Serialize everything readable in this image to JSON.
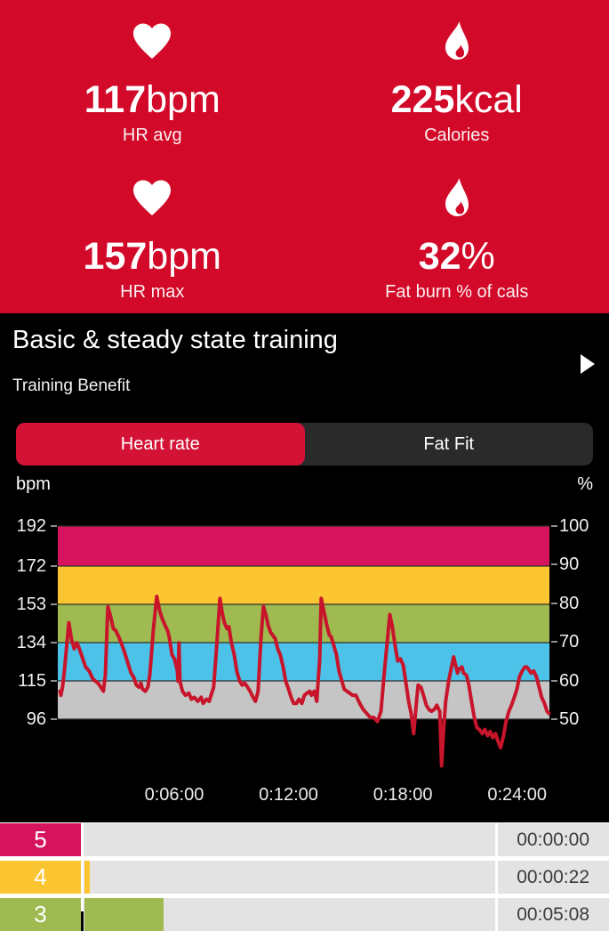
{
  "colors": {
    "header_bg": "#d20928",
    "panel_bg": "#000000",
    "tab_bar_bg": "#2b2a2b",
    "tab_selected_bg": "#d41235",
    "table_bg": "#ffffff",
    "row_bg": "#e3e3e3",
    "row_time_text": "#3b3b3b"
  },
  "header": {
    "stats": [
      {
        "icon": "heart",
        "value": "117",
        "unit": "bpm",
        "label": "HR avg"
      },
      {
        "icon": "flame",
        "value": "225",
        "unit": "kcal",
        "label": "Calories"
      },
      {
        "icon": "heart",
        "value": "157",
        "unit": "bpm",
        "label": "HR max"
      },
      {
        "icon": "flame",
        "value": "32",
        "unit": "%",
        "label": "Fat burn % of cals"
      }
    ]
  },
  "session": {
    "title": "Basic & steady state training",
    "subtitle": "Training Benefit"
  },
  "tabs": [
    {
      "label": "Heart rate",
      "selected": true
    },
    {
      "label": "Fat Fit",
      "selected": false
    }
  ],
  "chart_data": {
    "type": "line",
    "y_left_label": "bpm",
    "y_right_label": "%",
    "ylim": [
      96,
      192
    ],
    "y_left_ticks": [
      192,
      172,
      153,
      134,
      115,
      96
    ],
    "y_right_ticks": [
      100,
      90,
      80,
      70,
      60,
      50
    ],
    "x_ticks": [
      {
        "label": "0:06:00",
        "seconds": 360
      },
      {
        "label": "0:12:00",
        "seconds": 720
      },
      {
        "label": "0:18:00",
        "seconds": 1080
      },
      {
        "label": "0:24:00",
        "seconds": 1440
      }
    ],
    "zones": [
      {
        "zone": "5",
        "from": 172,
        "to": 192,
        "color": "#d6145e"
      },
      {
        "zone": "4",
        "from": 153,
        "to": 172,
        "color": "#fbc531"
      },
      {
        "zone": "3",
        "from": 134,
        "to": 153,
        "color": "#9eba51"
      },
      {
        "zone": "2",
        "from": 115,
        "to": 134,
        "color": "#4cc2e8"
      },
      {
        "zone": "1",
        "from": 96,
        "to": 115,
        "color": "#c4c5c4"
      }
    ],
    "line_color": "#c8152b",
    "series": [
      {
        "name": "heart_rate_bpm",
        "points": [
          [
            0,
            110
          ],
          [
            3,
            108
          ],
          [
            8,
            112
          ],
          [
            14,
            120
          ],
          [
            28,
            144
          ],
          [
            36,
            136
          ],
          [
            45,
            131
          ],
          [
            53,
            134
          ],
          [
            59,
            132
          ],
          [
            70,
            127
          ],
          [
            81,
            122
          ],
          [
            92,
            120
          ],
          [
            104,
            116
          ],
          [
            120,
            114
          ],
          [
            129,
            112
          ],
          [
            137,
            110
          ],
          [
            143,
            118
          ],
          [
            151,
            152
          ],
          [
            160,
            147
          ],
          [
            168,
            141
          ],
          [
            176,
            140
          ],
          [
            185,
            137
          ],
          [
            193,
            134
          ],
          [
            204,
            129
          ],
          [
            216,
            123
          ],
          [
            224,
            119
          ],
          [
            232,
            117
          ],
          [
            241,
            113
          ],
          [
            249,
            112
          ],
          [
            255,
            114
          ],
          [
            260,
            111
          ],
          [
            269,
            110
          ],
          [
            277,
            112
          ],
          [
            283,
            118
          ],
          [
            294,
            140
          ],
          [
            305,
            157
          ],
          [
            314,
            150
          ],
          [
            322,
            146
          ],
          [
            330,
            143
          ],
          [
            339,
            140
          ],
          [
            344,
            137
          ],
          [
            353,
            128
          ],
          [
            361,
            126
          ],
          [
            370,
            120
          ],
          [
            372,
            115
          ],
          [
            375,
            134
          ],
          [
            378,
            115
          ],
          [
            381,
            113
          ],
          [
            386,
            110
          ],
          [
            395,
            108
          ],
          [
            406,
            109
          ],
          [
            414,
            106
          ],
          [
            423,
            107
          ],
          [
            434,
            105
          ],
          [
            445,
            107
          ],
          [
            451,
            104
          ],
          [
            462,
            106
          ],
          [
            470,
            105
          ],
          [
            484,
            112
          ],
          [
            493,
            131
          ],
          [
            504,
            156
          ],
          [
            512,
            148
          ],
          [
            518,
            144
          ],
          [
            526,
            141
          ],
          [
            532,
            142
          ],
          [
            540,
            134
          ],
          [
            549,
            128
          ],
          [
            557,
            120
          ],
          [
            566,
            115
          ],
          [
            574,
            113
          ],
          [
            582,
            114
          ],
          [
            591,
            112
          ],
          [
            599,
            110
          ],
          [
            608,
            107
          ],
          [
            616,
            105
          ],
          [
            624,
            110
          ],
          [
            633,
            136
          ],
          [
            641,
            152
          ],
          [
            650,
            147
          ],
          [
            655,
            143
          ],
          [
            664,
            139
          ],
          [
            669,
            138
          ],
          [
            678,
            136
          ],
          [
            686,
            131
          ],
          [
            694,
            128
          ],
          [
            703,
            122
          ],
          [
            711,
            115
          ],
          [
            720,
            111
          ],
          [
            728,
            107
          ],
          [
            736,
            104
          ],
          [
            745,
            104
          ],
          [
            753,
            106
          ],
          [
            762,
            104
          ],
          [
            770,
            108
          ],
          [
            778,
            109
          ],
          [
            787,
            110
          ],
          [
            792,
            108
          ],
          [
            801,
            110
          ],
          [
            809,
            105
          ],
          [
            818,
            126
          ],
          [
            823,
            156
          ],
          [
            832,
            149
          ],
          [
            840,
            143
          ],
          [
            848,
            138
          ],
          [
            854,
            137
          ],
          [
            862,
            133
          ],
          [
            871,
            128
          ],
          [
            879,
            120
          ],
          [
            888,
            115
          ],
          [
            895,
            111
          ],
          [
            904,
            110
          ],
          [
            913,
            109
          ],
          [
            921,
            108
          ],
          [
            932,
            108
          ],
          [
            944,
            104
          ],
          [
            955,
            101
          ],
          [
            966,
            99
          ],
          [
            977,
            97
          ],
          [
            988,
            97
          ],
          [
            1000,
            95
          ],
          [
            1011,
            100
          ],
          [
            1022,
            120
          ],
          [
            1039,
            148
          ],
          [
            1047,
            142
          ],
          [
            1056,
            132
          ],
          [
            1064,
            125
          ],
          [
            1072,
            126
          ],
          [
            1081,
            123
          ],
          [
            1089,
            115
          ],
          [
            1098,
            105
          ],
          [
            1106,
            99
          ],
          [
            1114,
            89
          ],
          [
            1123,
            105
          ],
          [
            1128,
            113
          ],
          [
            1137,
            112
          ],
          [
            1145,
            108
          ],
          [
            1154,
            103
          ],
          [
            1162,
            101
          ],
          [
            1170,
            100
          ],
          [
            1179,
            101
          ],
          [
            1187,
            103
          ],
          [
            1196,
            100
          ],
          [
            1199,
            88
          ],
          [
            1202,
            73
          ],
          [
            1208,
            90
          ],
          [
            1215,
            105
          ],
          [
            1224,
            115
          ],
          [
            1232,
            121
          ],
          [
            1240,
            127
          ],
          [
            1246,
            123
          ],
          [
            1252,
            119
          ],
          [
            1257,
            121
          ],
          [
            1266,
            122
          ],
          [
            1271,
            119
          ],
          [
            1280,
            118
          ],
          [
            1288,
            113
          ],
          [
            1296,
            105
          ],
          [
            1305,
            97
          ],
          [
            1313,
            92
          ],
          [
            1321,
            91
          ],
          [
            1330,
            89
          ],
          [
            1338,
            91
          ],
          [
            1347,
            88
          ],
          [
            1355,
            90
          ],
          [
            1363,
            87
          ],
          [
            1372,
            89
          ],
          [
            1380,
            85
          ],
          [
            1388,
            82
          ],
          [
            1397,
            88
          ],
          [
            1405,
            95
          ],
          [
            1414,
            100
          ],
          [
            1422,
            103
          ],
          [
            1431,
            107
          ],
          [
            1439,
            111
          ],
          [
            1447,
            117
          ],
          [
            1456,
            120
          ],
          [
            1464,
            122
          ],
          [
            1470,
            122
          ],
          [
            1475,
            121
          ],
          [
            1484,
            119
          ],
          [
            1492,
            120
          ],
          [
            1501,
            117
          ],
          [
            1509,
            112
          ],
          [
            1517,
            107
          ],
          [
            1526,
            104
          ],
          [
            1534,
            100
          ],
          [
            1540,
            99
          ]
        ]
      }
    ]
  },
  "zone_table": {
    "rows": [
      {
        "zone": "5",
        "color": "#d6145e",
        "time": "00:00:00",
        "seconds": 0
      },
      {
        "zone": "4",
        "color": "#fbc531",
        "time": "00:00:22",
        "seconds": 22
      },
      {
        "zone": "3",
        "color": "#9eba51",
        "time": "00:05:08",
        "seconds": 308
      }
    ]
  }
}
